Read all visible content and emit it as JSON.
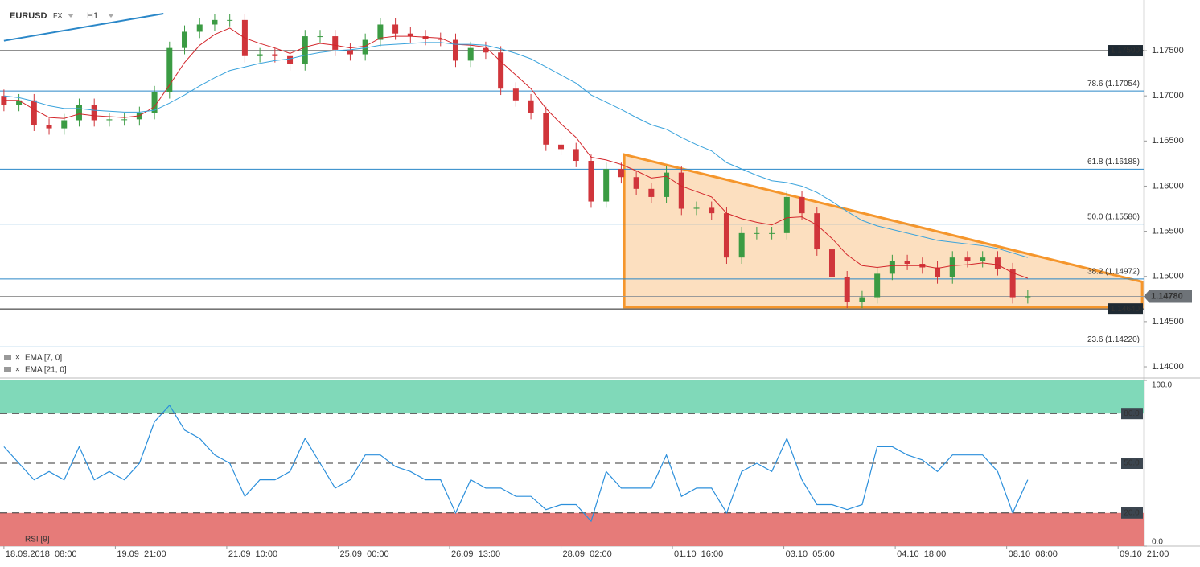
{
  "header": {
    "symbol": "EURUSD",
    "market": "FX",
    "interval": "H1"
  },
  "chart_data": [
    {
      "type": "candlestick",
      "x": [
        0,
        5,
        10,
        15,
        20,
        25,
        30,
        35,
        40,
        45,
        50,
        55,
        60,
        65,
        70,
        75,
        80,
        85,
        90,
        95,
        100,
        105,
        110,
        115,
        120,
        125,
        130,
        135,
        140,
        145,
        150,
        155,
        160,
        165,
        170,
        175,
        180,
        185,
        190,
        195,
        200,
        205,
        210,
        215,
        220,
        225,
        230,
        235,
        240,
        245,
        250,
        255,
        260,
        265,
        270,
        275,
        280,
        285,
        290,
        295,
        300,
        305,
        310,
        315,
        320,
        325,
        330,
        335,
        340
      ],
      "open": [
        1.17,
        1.169,
        1.1695,
        1.1668,
        1.1664,
        1.1673,
        1.169,
        1.1673,
        1.1674,
        1.1674,
        1.1681,
        1.1704,
        1.1753,
        1.1771,
        1.1779,
        1.1784,
        1.1784,
        1.1744,
        1.1746,
        1.1744,
        1.1735,
        1.1766,
        1.1766,
        1.1751,
        1.1746,
        1.1762,
        1.1779,
        1.1769,
        1.1766,
        1.1763,
        1.1762,
        1.1739,
        1.1753,
        1.1748,
        1.1708,
        1.1695,
        1.1681,
        1.1646,
        1.1641,
        1.1628,
        1.1583,
        1.1619,
        1.161,
        1.1597,
        1.1588,
        1.1615,
        1.1575,
        1.1576,
        1.157,
        1.1521,
        1.1548,
        1.1548,
        1.1548,
        1.1588,
        1.157,
        1.153,
        1.1499,
        1.1472,
        1.1477,
        1.1503,
        1.1517,
        1.1514,
        1.151,
        1.1499,
        1.1521,
        1.1517,
        1.1521,
        1.1508,
        1.1477
      ],
      "high": [
        1.1707,
        1.1702,
        1.1702,
        1.1675,
        1.168,
        1.1697,
        1.1697,
        1.1681,
        1.1681,
        1.1688,
        1.1711,
        1.176,
        1.1778,
        1.1786,
        1.1791,
        1.1791,
        1.1791,
        1.1753,
        1.1753,
        1.1751,
        1.1773,
        1.1773,
        1.1773,
        1.1758,
        1.1769,
        1.1786,
        1.1786,
        1.1776,
        1.1773,
        1.177,
        1.1769,
        1.176,
        1.176,
        1.1755,
        1.1715,
        1.1702,
        1.1688,
        1.1653,
        1.1648,
        1.1635,
        1.1626,
        1.1626,
        1.1617,
        1.1604,
        1.1622,
        1.1622,
        1.1583,
        1.1583,
        1.1577,
        1.1555,
        1.1555,
        1.1555,
        1.1595,
        1.1595,
        1.1577,
        1.1537,
        1.1506,
        1.1484,
        1.151,
        1.1524,
        1.1524,
        1.1521,
        1.1517,
        1.1528,
        1.1528,
        1.1528,
        1.1528,
        1.1515,
        1.1485
      ],
      "low": [
        1.1683,
        1.1683,
        1.1661,
        1.1657,
        1.1657,
        1.1666,
        1.1666,
        1.1666,
        1.1667,
        1.1667,
        1.1674,
        1.1697,
        1.1746,
        1.1764,
        1.1772,
        1.1777,
        1.1737,
        1.1737,
        1.1737,
        1.1728,
        1.1728,
        1.1759,
        1.1744,
        1.1739,
        1.1739,
        1.1755,
        1.1762,
        1.1759,
        1.1756,
        1.1755,
        1.1732,
        1.1732,
        1.1741,
        1.1701,
        1.1688,
        1.1674,
        1.1639,
        1.1634,
        1.1621,
        1.1576,
        1.1576,
        1.1603,
        1.159,
        1.1581,
        1.1581,
        1.1568,
        1.1568,
        1.1563,
        1.1514,
        1.1514,
        1.1541,
        1.1541,
        1.1541,
        1.1563,
        1.1523,
        1.1492,
        1.1465,
        1.1465,
        1.147,
        1.1496,
        1.1507,
        1.1503,
        1.1492,
        1.1492,
        1.151,
        1.151,
        1.1501,
        1.147,
        1.147
      ],
      "close": [
        1.169,
        1.1695,
        1.1668,
        1.1664,
        1.1673,
        1.169,
        1.1673,
        1.1674,
        1.1674,
        1.1681,
        1.1704,
        1.1753,
        1.1771,
        1.1779,
        1.1784,
        1.1784,
        1.1744,
        1.1746,
        1.1744,
        1.1735,
        1.1766,
        1.1766,
        1.1751,
        1.1746,
        1.1762,
        1.1779,
        1.1769,
        1.1766,
        1.1763,
        1.1762,
        1.1739,
        1.1753,
        1.1748,
        1.1708,
        1.1695,
        1.1681,
        1.1646,
        1.1641,
        1.1628,
        1.1583,
        1.1619,
        1.161,
        1.1597,
        1.1588,
        1.1615,
        1.1575,
        1.1576,
        1.157,
        1.1521,
        1.1548,
        1.1548,
        1.1548,
        1.1588,
        1.157,
        1.153,
        1.1499,
        1.1472,
        1.1477,
        1.1503,
        1.1517,
        1.1514,
        1.151,
        1.1499,
        1.1521,
        1.1517,
        1.1521,
        1.1508,
        1.1477,
        1.1478
      ],
      "up_color": "#3b9b43",
      "down_color": "#d0353b",
      "xlim": [
        -0.5,
        378.5
      ],
      "xticks": [
        {
          "value": 0,
          "label": "18.09.2018  08:00"
        },
        {
          "value": 37,
          "label": "19.09  21:00"
        },
        {
          "value": 74,
          "label": "21.09  10:00"
        },
        {
          "value": 111,
          "label": "25.09  00:00"
        },
        {
          "value": 148,
          "label": "26.09  13:00"
        },
        {
          "value": 185,
          "label": "28.09  02:00"
        },
        {
          "value": 222,
          "label": "01.10  16:00"
        },
        {
          "value": 259,
          "label": "03.10  05:00"
        },
        {
          "value": 296,
          "label": "04.10  18:00"
        },
        {
          "value": 333,
          "label": "08.10  08:00"
        },
        {
          "value": 370,
          "label": "09.10  21:00"
        }
      ],
      "ylim": [
        1.1392,
        1.1791
      ],
      "yticks": [
        {
          "value": 1.14,
          "label": "1.14000"
        },
        {
          "value": 1.145,
          "label": "1.14500"
        },
        {
          "value": 1.15,
          "label": "1.15000"
        },
        {
          "value": 1.155,
          "label": "1.15500"
        },
        {
          "value": 1.16,
          "label": "1.16000"
        },
        {
          "value": 1.165,
          "label": "1.16500"
        },
        {
          "value": 1.17,
          "label": "1.17000"
        },
        {
          "value": 1.175,
          "label": "1.17500"
        }
      ],
      "overlays": [
        {
          "name": "EMA [7, 0]",
          "color": "#d3262b",
          "values": [
            1.1695,
            1.1695,
            1.1685,
            1.1676,
            1.1675,
            1.168,
            1.1678,
            1.1677,
            1.1676,
            1.1678,
            1.1688,
            1.1712,
            1.1737,
            1.1756,
            1.1768,
            1.1775,
            1.1764,
            1.1758,
            1.1753,
            1.1747,
            1.1754,
            1.1758,
            1.1756,
            1.1753,
            1.1755,
            1.1764,
            1.1766,
            1.1766,
            1.1765,
            1.1764,
            1.1757,
            1.1756,
            1.1754,
            1.1738,
            1.1723,
            1.1708,
            1.1686,
            1.1669,
            1.1654,
            1.1632,
            1.1629,
            1.1624,
            1.1617,
            1.1609,
            1.1611,
            1.16,
            1.1594,
            1.1588,
            1.157,
            1.1564,
            1.156,
            1.1557,
            1.1565,
            1.1566,
            1.1557,
            1.1542,
            1.1524,
            1.1512,
            1.151,
            1.1512,
            1.1512,
            1.1512,
            1.1509,
            1.1512,
            1.1513,
            1.1515,
            1.1513,
            1.1504,
            1.1498
          ]
        },
        {
          "name": "EMA [21, 0]",
          "color": "#3aa3dc",
          "values": [
            1.17,
            1.1698,
            1.1694,
            1.1689,
            1.1686,
            1.1686,
            1.1684,
            1.1683,
            1.1682,
            1.1682,
            1.1684,
            1.1692,
            1.1701,
            1.1711,
            1.172,
            1.1728,
            1.1732,
            1.1736,
            1.1739,
            1.1741,
            1.1745,
            1.1748,
            1.175,
            1.1751,
            1.1753,
            1.1756,
            1.1757,
            1.1758,
            1.1759,
            1.1759,
            1.1757,
            1.1757,
            1.1756,
            1.1752,
            1.1747,
            1.1741,
            1.1732,
            1.1723,
            1.1714,
            1.1701,
            1.1693,
            1.1685,
            1.1676,
            1.1668,
            1.1663,
            1.1654,
            1.1646,
            1.1639,
            1.1626,
            1.1619,
            1.1612,
            1.1606,
            1.1604,
            1.16,
            1.1593,
            1.1583,
            1.1572,
            1.1562,
            1.1556,
            1.1552,
            1.1548,
            1.1544,
            1.154,
            1.1538,
            1.1536,
            1.1534,
            1.1531,
            1.1526,
            1.1521
          ]
        }
      ],
      "levels": [
        {
          "value": 1.175,
          "label": "1.17500",
          "color": "#222222",
          "boxed": true
        },
        {
          "value": 1.17054,
          "label": "78.6 (1.17054)",
          "color": "#2a87c8"
        },
        {
          "value": 1.16188,
          "label": "61.8 (1.16188)",
          "color": "#2a87c8"
        },
        {
          "value": 1.1558,
          "label": "50.0 (1.15580)",
          "color": "#2a87c8"
        },
        {
          "value": 1.14972,
          "label": "38.2 (1.14972)",
          "color": "#2a87c8"
        },
        {
          "value": 1.1464,
          "label": "1.14640",
          "color": "#222222",
          "boxed": true
        },
        {
          "value": 1.1422,
          "label": "23.6 (1.14220)",
          "color": "#2a87c8"
        }
      ],
      "last_price": {
        "value": 1.1478,
        "label": "1.14780"
      },
      "pattern": {
        "x": [
          206,
          378,
          378,
          206
        ],
        "y": [
          1.1635,
          1.1494,
          1.1466,
          1.1466
        ],
        "color": "#f5962c"
      },
      "trendline": {
        "x": [
          0,
          53
        ],
        "y": [
          1.1761,
          1.1791
        ],
        "color": "#2a87c8"
      }
    },
    {
      "type": "line",
      "x": [
        0,
        5,
        10,
        15,
        20,
        25,
        30,
        35,
        40,
        45,
        50,
        55,
        60,
        65,
        70,
        75,
        80,
        85,
        90,
        95,
        100,
        105,
        110,
        115,
        120,
        125,
        130,
        135,
        140,
        145,
        150,
        155,
        160,
        165,
        170,
        175,
        180,
        185,
        190,
        195,
        200,
        205,
        210,
        215,
        220,
        225,
        230,
        235,
        240,
        245,
        250,
        255,
        260,
        265,
        270,
        275,
        280,
        285,
        290,
        295,
        300,
        305,
        310,
        315,
        320,
        325,
        330,
        335,
        340
      ],
      "series": [
        {
          "name": "RSI [9]",
          "color": "#2b8fdb",
          "values": [
            60,
            50,
            40,
            45,
            40,
            60,
            40,
            45,
            40,
            50,
            75,
            85,
            70,
            65,
            55,
            50,
            30,
            40,
            40,
            45,
            65,
            50,
            35,
            40,
            55,
            55,
            48,
            45,
            40,
            40,
            20,
            40,
            35,
            35,
            30,
            30,
            22,
            25,
            25,
            15,
            45,
            35,
            35,
            35,
            55,
            30,
            35,
            35,
            20,
            45,
            50,
            45,
            65,
            40,
            25,
            25,
            22,
            25,
            60,
            60,
            55,
            52,
            45,
            55,
            55,
            55,
            45,
            20,
            40
          ]
        }
      ],
      "xlim": [
        -0.5,
        378.5
      ],
      "ylim": [
        0,
        100
      ],
      "yticks": [
        {
          "value": 0,
          "label": "0.0"
        },
        {
          "value": 20,
          "label": "20.0",
          "boxed": true
        },
        {
          "value": 50,
          "label": "50.0",
          "boxed": true
        },
        {
          "value": 80,
          "label": "80.0",
          "boxed": true
        },
        {
          "value": 100,
          "label": "100.0"
        }
      ],
      "bands": [
        {
          "from": 80,
          "to": 100,
          "color": "#80d9b9"
        },
        {
          "from": 0,
          "to": 20,
          "color": "#e67b79"
        }
      ]
    }
  ]
}
